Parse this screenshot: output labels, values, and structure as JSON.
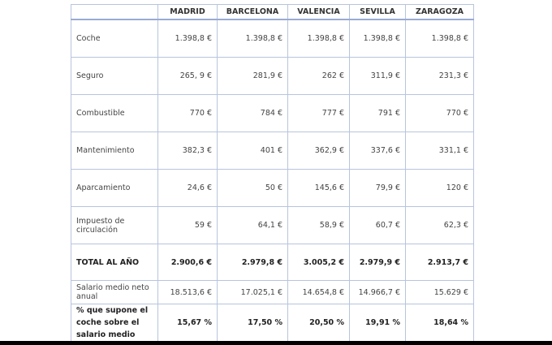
{
  "headers": [
    "",
    "MADRID",
    "BARCELONA",
    "VALENCIA",
    "SEVILLA",
    "ZARAGOZA"
  ],
  "rows": [
    {
      "label": "Coche",
      "values": [
        "1.398,8 €",
        "1.398,8 €",
        "1.398,8 €",
        "1.398,8 €",
        "1.398,8 €"
      ]
    },
    {
      "label": "Seguro",
      "values": [
        "265, 9 €",
        "281,9 €",
        "262 €",
        "311,9 €",
        "231,3 €"
      ]
    },
    {
      "label": "Combustible",
      "values": [
        "770 €",
        "784 €",
        "777 €",
        "791 €",
        "770 €"
      ]
    },
    {
      "label": "Mantenimiento",
      "values": [
        "382,3 €",
        "401 €",
        "362,9 €",
        "337,6 €",
        "331,1 €"
      ]
    },
    {
      "label": "Aparcamiento",
      "values": [
        "24,6 €",
        "50 €",
        "145,6 €",
        "79,9 €",
        "120 €"
      ]
    },
    {
      "label": "Impuesto de circulación",
      "values": [
        "59 €",
        "64,1 €",
        "58,9 €",
        "60,7 €",
        "62,3 €"
      ]
    }
  ],
  "total": {
    "label": "TOTAL AL AÑO",
    "values": [
      "2.900,6 €",
      "2.979,8 €",
      "3.005,2 €",
      "2.979,9 €",
      "2.913,7 €"
    ]
  },
  "salary": {
    "label": "Salario medio neto anual",
    "values": [
      "18.513,6 €",
      "17.025,1 €",
      "14.654,8 €",
      "14.966,7 €",
      "15.629 €"
    ]
  },
  "percent": {
    "label": "% que supone el coche sobre el salario medio",
    "values": [
      "15,67 %",
      "17,50 %",
      "20,50 %",
      "19,91 %",
      "18,64 %"
    ]
  }
}
